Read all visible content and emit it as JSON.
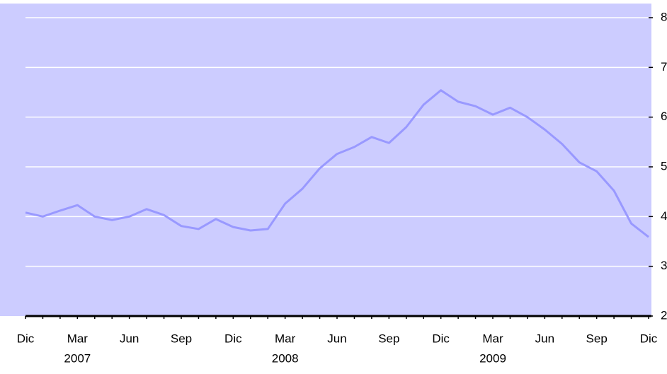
{
  "chart_data": {
    "type": "line",
    "categories": [
      "Dic",
      null,
      null,
      "Mar",
      null,
      null,
      "Jun",
      null,
      null,
      "Sep",
      null,
      null,
      "Dic",
      null,
      null,
      "Mar",
      null,
      null,
      "Jun",
      null,
      null,
      "Sep",
      null,
      null,
      "Dic",
      null,
      null,
      "Mar",
      null,
      null,
      "Jun",
      null,
      null,
      "Sep",
      null,
      null,
      "Dic"
    ],
    "category_groups": [
      "2007",
      "2008",
      "2009"
    ],
    "series": [
      {
        "color": "#9999ff",
        "values": [
          4.08,
          4.0,
          4.12,
          4.23,
          4.0,
          3.93,
          4.0,
          4.15,
          4.03,
          3.81,
          3.75,
          3.95,
          3.79,
          3.72,
          3.75,
          4.26,
          4.56,
          4.97,
          5.26,
          5.4,
          5.6,
          5.48,
          5.8,
          6.25,
          6.54,
          6.31,
          6.22,
          6.05,
          6.19,
          6.0,
          5.75,
          5.46,
          5.09,
          4.91,
          4.52,
          3.86,
          3.59
        ]
      }
    ],
    "ylim": [
      2,
      8
    ],
    "yticks": [
      2,
      3,
      4,
      5,
      6,
      7,
      8
    ],
    "grid": true,
    "background": "#ccccff"
  }
}
